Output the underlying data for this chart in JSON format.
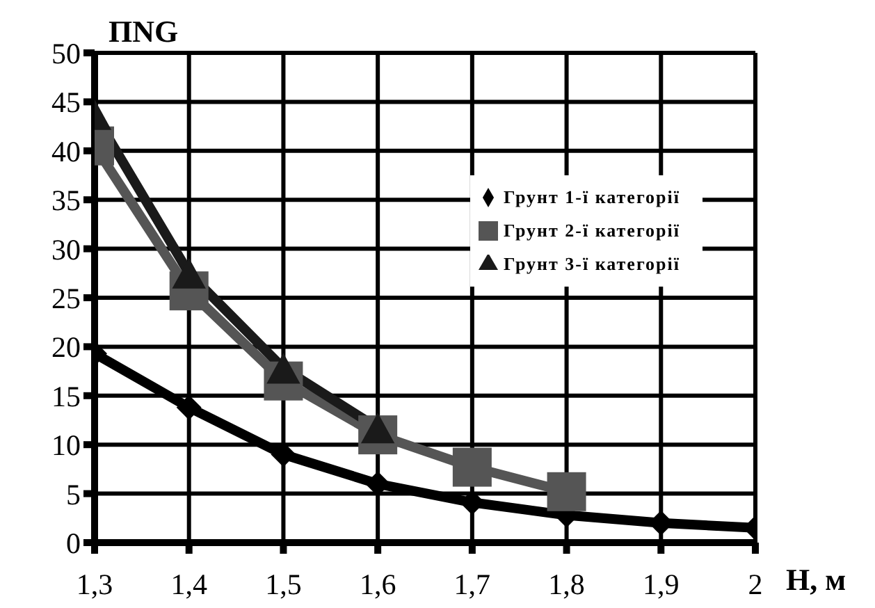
{
  "chart_data": {
    "type": "line",
    "xlabel": "Н, м",
    "ylabel": "ПNG",
    "x": [
      1.3,
      1.4,
      1.5,
      1.6,
      1.7,
      1.8,
      1.9,
      2
    ],
    "series": [
      {
        "name": "Грунт 1-ї категорії",
        "color": "#000000",
        "marker": "diamond",
        "values": [
          19.3,
          13.8,
          9,
          6,
          4.1,
          2.8,
          2,
          1.5
        ]
      },
      {
        "name": "Грунт 2-ї категорії",
        "color": "#555555",
        "marker": "square",
        "values": [
          40.5,
          25.7,
          16.5,
          11,
          7.7,
          5.2,
          null,
          null
        ]
      },
      {
        "name": "Грунт 3-ї категорії",
        "color": "#1a1a1a",
        "marker": "triangle",
        "values": [
          43.7,
          27.5,
          17.8,
          11.7,
          null,
          null,
          null,
          null
        ]
      }
    ],
    "xlim": [
      1.3,
      2
    ],
    "xticks": [
      {
        "value": 1.3,
        "label": "1,3"
      },
      {
        "value": 1.4,
        "label": "1,4"
      },
      {
        "value": 1.5,
        "label": "1,5"
      },
      {
        "value": 1.6,
        "label": "1,6"
      },
      {
        "value": 1.7,
        "label": "1,7"
      },
      {
        "value": 1.8,
        "label": "1,8"
      },
      {
        "value": 1.9,
        "label": "1,9"
      },
      2
    ],
    "ylim": [
      0,
      50
    ],
    "yticks": [
      0,
      5,
      10,
      15,
      20,
      25,
      30,
      35,
      40,
      45,
      50
    ],
    "grid": true,
    "legend": "top right"
  }
}
